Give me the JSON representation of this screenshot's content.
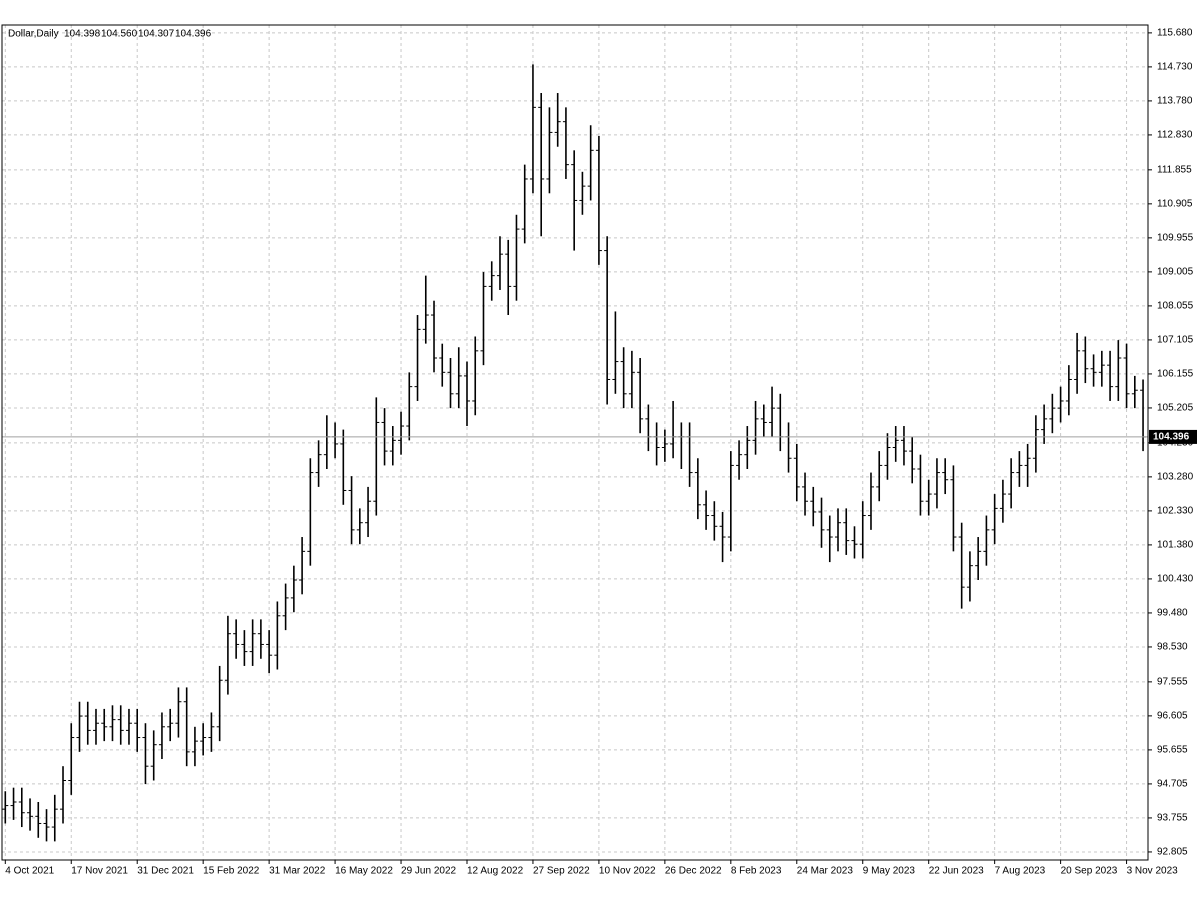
{
  "chart_data": {
    "type": "ohlc",
    "title": "Dollar,Daily",
    "quote": [
      {
        "value": 104.398,
        "label": "104.398"
      },
      {
        "value": 104.56,
        "label": "104.560"
      },
      {
        "value": 104.307,
        "label": "104.307"
      },
      {
        "value": 104.396,
        "label": "104.396"
      }
    ],
    "color": "#000000",
    "grid": true,
    "current_price": {
      "value": 104.396,
      "label": "104.396"
    },
    "xlim": [
      -0.4,
      138.6
    ],
    "xticks": [
      {
        "value": 0,
        "label": "4 Oct 2021"
      },
      {
        "value": 8,
        "label": "17 Nov 2021"
      },
      {
        "value": 16,
        "label": "31 Dec 2021"
      },
      {
        "value": 24,
        "label": "15 Feb 2022"
      },
      {
        "value": 32,
        "label": "31 Mar 2022"
      },
      {
        "value": 40,
        "label": "16 May 2022"
      },
      {
        "value": 48,
        "label": "29 Jun 2022"
      },
      {
        "value": 56,
        "label": "12 Aug 2022"
      },
      {
        "value": 64,
        "label": "27 Sep 2022"
      },
      {
        "value": 72,
        "label": "10 Nov 2022"
      },
      {
        "value": 80,
        "label": "26 Dec 2022"
      },
      {
        "value": 88,
        "label": "8 Feb 2023"
      },
      {
        "value": 96,
        "label": "24 Mar 2023"
      },
      {
        "value": 104,
        "label": "9 May 2023"
      },
      {
        "value": 112,
        "label": "22 Jun 2023"
      },
      {
        "value": 120,
        "label": "7 Aug 2023"
      },
      {
        "value": 128,
        "label": "20 Sep 2023"
      },
      {
        "value": 136,
        "label": "3 Nov 2023"
      }
    ],
    "ylim": [
      92.58,
      115.9
    ],
    "yticks": [
      92.805,
      93.755,
      94.705,
      95.655,
      96.605,
      97.555,
      {
        "value": 98.53,
        "label": "98.530"
      },
      {
        "value": 99.48,
        "label": "99.480"
      },
      {
        "value": 100.43,
        "label": "100.430"
      },
      {
        "value": 101.38,
        "label": "101.380"
      },
      {
        "value": 102.33,
        "label": "102.330"
      },
      {
        "value": 103.28,
        "label": "103.280"
      },
      {
        "value": 104.23,
        "label": "104.230"
      },
      105.205,
      106.155,
      107.105,
      108.055,
      109.005,
      109.955,
      110.905,
      111.855,
      {
        "value": 112.83,
        "label": "112.830"
      },
      {
        "value": 113.78,
        "label": "113.780"
      },
      {
        "value": 114.73,
        "label": "114.730"
      },
      {
        "value": 115.68,
        "label": "115.680"
      }
    ],
    "open": [
      94.0,
      94.1,
      94.2,
      93.9,
      93.8,
      93.6,
      93.5,
      94.0,
      94.8,
      96.0,
      96.6,
      96.2,
      96.4,
      96.3,
      96.5,
      96.2,
      96.4,
      96.0,
      95.2,
      95.8,
      96.3,
      96.4,
      97.0,
      95.6,
      95.9,
      96.0,
      96.3,
      97.6,
      98.9,
      98.6,
      98.4,
      98.9,
      98.6,
      98.3,
      99.4,
      99.9,
      100.4,
      101.2,
      103.4,
      103.9,
      104.4,
      104.2,
      102.9,
      101.8,
      102.0,
      102.6,
      104.8,
      104.0,
      104.3,
      104.7,
      105.8,
      107.4,
      107.8,
      106.6,
      106.2,
      105.6,
      106.1,
      105.4,
      106.8,
      108.6,
      108.9,
      109.5,
      108.6,
      110.2,
      111.6,
      113.6,
      111.6,
      112.9,
      113.2,
      112.0,
      111.0,
      111.4,
      112.4,
      109.6,
      106.0,
      106.5,
      105.6,
      106.2,
      104.9,
      104.4,
      104.1,
      104.2,
      104.4,
      104.4,
      103.4,
      102.5,
      102.2,
      101.9,
      101.6,
      103.6,
      103.9,
      104.3,
      104.9,
      104.8,
      105.2,
      104.4,
      103.8,
      103.0,
      102.6,
      102.3,
      101.8,
      101.6,
      102.0,
      101.5,
      101.4,
      102.2,
      103.0,
      103.6,
      104.1,
      104.3,
      104.0,
      103.5,
      102.6,
      102.8,
      103.4,
      103.2,
      101.6,
      100.2,
      100.8,
      101.2,
      101.8,
      102.4,
      102.8,
      103.4,
      103.6,
      103.8,
      104.6,
      104.9,
      105.2,
      105.4,
      106.0,
      106.8,
      106.3,
      106.2,
      106.4,
      105.8,
      106.6,
      105.6,
      105.7
    ],
    "high": [
      94.5,
      94.6,
      94.6,
      94.3,
      94.2,
      94.0,
      94.4,
      95.2,
      96.4,
      97.0,
      97.0,
      96.8,
      96.8,
      96.9,
      96.9,
      96.8,
      96.8,
      96.4,
      96.2,
      96.7,
      96.8,
      97.4,
      97.4,
      96.3,
      96.4,
      96.7,
      98.0,
      99.4,
      99.3,
      99.0,
      99.3,
      99.3,
      99.0,
      99.8,
      100.3,
      100.8,
      101.6,
      103.8,
      104.3,
      105.0,
      104.8,
      104.6,
      103.3,
      102.4,
      103.0,
      105.5,
      105.2,
      104.7,
      105.1,
      106.2,
      107.8,
      108.9,
      108.2,
      107.0,
      106.6,
      106.9,
      106.5,
      107.2,
      109.0,
      109.3,
      110.0,
      109.9,
      110.6,
      112.0,
      114.8,
      114.0,
      113.6,
      114.0,
      113.6,
      112.4,
      111.8,
      113.1,
      112.8,
      110.0,
      107.9,
      106.9,
      106.8,
      106.6,
      105.3,
      104.8,
      104.6,
      105.4,
      104.8,
      104.8,
      103.8,
      102.9,
      102.6,
      102.3,
      104.0,
      104.3,
      104.7,
      105.4,
      105.3,
      105.8,
      105.6,
      104.8,
      104.2,
      103.4,
      103.0,
      102.7,
      102.2,
      102.4,
      102.4,
      101.9,
      102.6,
      103.4,
      104.0,
      104.5,
      104.7,
      104.7,
      104.4,
      103.9,
      103.2,
      103.8,
      103.8,
      103.6,
      102.0,
      101.2,
      101.6,
      102.2,
      102.8,
      103.2,
      103.8,
      104.0,
      104.2,
      105.0,
      105.3,
      105.6,
      105.8,
      106.4,
      107.3,
      107.2,
      106.7,
      106.8,
      106.8,
      107.1,
      107.0,
      106.1,
      106.0
    ],
    "low": [
      93.6,
      93.7,
      93.5,
      93.4,
      93.2,
      93.1,
      93.1,
      93.6,
      94.4,
      95.6,
      95.8,
      95.8,
      95.9,
      95.9,
      95.8,
      95.8,
      95.6,
      94.7,
      94.8,
      95.4,
      95.9,
      96.0,
      95.2,
      95.2,
      95.5,
      95.6,
      95.9,
      97.2,
      98.2,
      98.0,
      98.0,
      98.2,
      97.8,
      97.9,
      99.0,
      99.5,
      100.0,
      100.8,
      103.0,
      103.5,
      103.8,
      102.5,
      101.4,
      101.4,
      101.6,
      102.2,
      103.6,
      103.6,
      103.9,
      104.3,
      105.4,
      107.0,
      106.2,
      105.8,
      105.2,
      105.2,
      104.7,
      105.0,
      106.4,
      108.2,
      108.5,
      107.8,
      108.2,
      109.8,
      111.2,
      110.0,
      111.2,
      112.5,
      111.6,
      109.6,
      110.6,
      111.0,
      109.2,
      105.3,
      105.6,
      105.2,
      105.2,
      104.5,
      104.0,
      103.6,
      103.7,
      103.8,
      103.5,
      103.0,
      102.1,
      101.8,
      101.5,
      100.9,
      101.2,
      103.2,
      103.5,
      103.9,
      104.4,
      104.4,
      104.0,
      103.4,
      102.6,
      102.2,
      101.9,
      101.3,
      100.9,
      101.2,
      101.1,
      101.0,
      101.0,
      101.8,
      102.6,
      103.2,
      103.7,
      103.6,
      103.1,
      102.2,
      102.2,
      102.4,
      102.8,
      101.2,
      99.6,
      99.8,
      100.4,
      100.8,
      101.4,
      102.0,
      102.4,
      103.0,
      103.0,
      103.4,
      104.2,
      104.5,
      104.8,
      105.0,
      105.6,
      105.9,
      105.8,
      105.8,
      105.4,
      105.4,
      105.2,
      105.2,
      104.0
    ],
    "close": [
      94.1,
      94.2,
      93.9,
      93.8,
      93.6,
      93.5,
      94.0,
      94.8,
      96.0,
      96.6,
      96.2,
      96.4,
      96.3,
      96.5,
      96.2,
      96.4,
      96.0,
      95.2,
      95.8,
      96.3,
      96.4,
      97.0,
      95.6,
      95.9,
      96.0,
      96.3,
      97.6,
      98.9,
      98.6,
      98.4,
      98.9,
      98.6,
      98.3,
      99.4,
      99.9,
      100.4,
      101.2,
      103.4,
      103.9,
      104.4,
      104.2,
      102.9,
      101.8,
      102.0,
      102.6,
      104.8,
      104.0,
      104.3,
      104.7,
      105.8,
      107.4,
      107.8,
      106.6,
      106.2,
      105.6,
      106.1,
      105.4,
      106.8,
      108.6,
      108.9,
      109.5,
      108.6,
      110.2,
      111.6,
      113.6,
      111.6,
      112.9,
      113.2,
      112.0,
      111.0,
      111.4,
      112.4,
      109.6,
      106.0,
      106.5,
      105.6,
      106.2,
      104.9,
      104.4,
      104.1,
      104.2,
      104.4,
      104.4,
      103.4,
      102.5,
      102.2,
      101.9,
      101.6,
      103.6,
      103.9,
      104.3,
      104.9,
      104.8,
      105.2,
      104.4,
      103.8,
      103.0,
      102.6,
      102.3,
      101.8,
      101.6,
      102.0,
      101.5,
      101.4,
      102.2,
      103.0,
      103.6,
      104.1,
      104.3,
      104.0,
      103.5,
      102.6,
      102.8,
      103.4,
      103.2,
      101.6,
      100.2,
      100.8,
      101.2,
      101.8,
      102.4,
      102.8,
      103.4,
      103.6,
      103.8,
      104.6,
      104.9,
      105.2,
      105.4,
      106.0,
      106.8,
      106.3,
      106.2,
      106.4,
      105.8,
      106.6,
      105.6,
      105.7,
      104.396
    ]
  }
}
